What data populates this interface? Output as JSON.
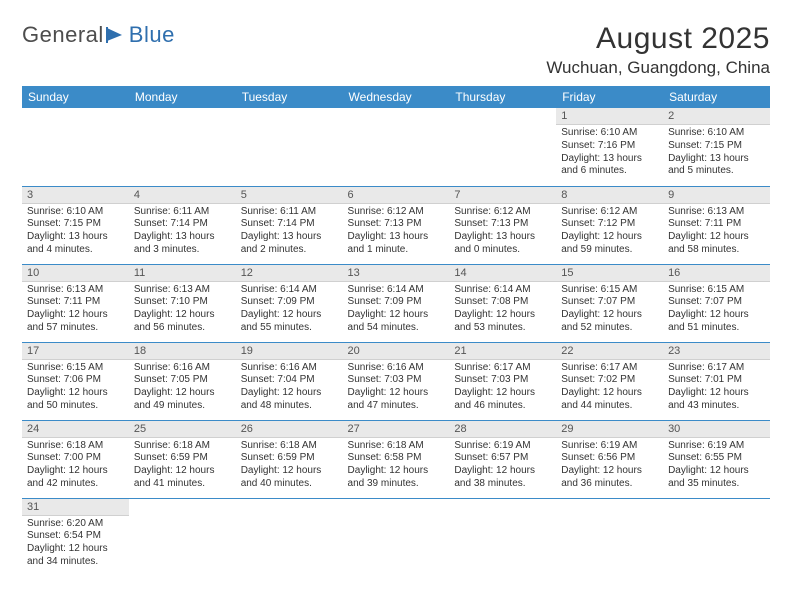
{
  "logo": {
    "text1": "General",
    "text2": "Blue"
  },
  "title": "August 2025",
  "location": "Wuchuan, Guangdong, China",
  "colors": {
    "header_bg": "#3b8bc8",
    "header_text": "#ffffff",
    "daynum_bg": "#e9e9e9",
    "row_divider": "#3b8bc8",
    "logo_gray": "#4d4d4d",
    "logo_blue": "#2f6fae"
  },
  "weekdays": [
    "Sunday",
    "Monday",
    "Tuesday",
    "Wednesday",
    "Thursday",
    "Friday",
    "Saturday"
  ],
  "grid": [
    [
      null,
      null,
      null,
      null,
      null,
      {
        "n": "1",
        "sr": "6:10 AM",
        "ss": "7:16 PM",
        "dl": "13 hours and 6 minutes."
      },
      {
        "n": "2",
        "sr": "6:10 AM",
        "ss": "7:15 PM",
        "dl": "13 hours and 5 minutes."
      }
    ],
    [
      {
        "n": "3",
        "sr": "6:10 AM",
        "ss": "7:15 PM",
        "dl": "13 hours and 4 minutes."
      },
      {
        "n": "4",
        "sr": "6:11 AM",
        "ss": "7:14 PM",
        "dl": "13 hours and 3 minutes."
      },
      {
        "n": "5",
        "sr": "6:11 AM",
        "ss": "7:14 PM",
        "dl": "13 hours and 2 minutes."
      },
      {
        "n": "6",
        "sr": "6:12 AM",
        "ss": "7:13 PM",
        "dl": "13 hours and 1 minute."
      },
      {
        "n": "7",
        "sr": "6:12 AM",
        "ss": "7:13 PM",
        "dl": "13 hours and 0 minutes."
      },
      {
        "n": "8",
        "sr": "6:12 AM",
        "ss": "7:12 PM",
        "dl": "12 hours and 59 minutes."
      },
      {
        "n": "9",
        "sr": "6:13 AM",
        "ss": "7:11 PM",
        "dl": "12 hours and 58 minutes."
      }
    ],
    [
      {
        "n": "10",
        "sr": "6:13 AM",
        "ss": "7:11 PM",
        "dl": "12 hours and 57 minutes."
      },
      {
        "n": "11",
        "sr": "6:13 AM",
        "ss": "7:10 PM",
        "dl": "12 hours and 56 minutes."
      },
      {
        "n": "12",
        "sr": "6:14 AM",
        "ss": "7:09 PM",
        "dl": "12 hours and 55 minutes."
      },
      {
        "n": "13",
        "sr": "6:14 AM",
        "ss": "7:09 PM",
        "dl": "12 hours and 54 minutes."
      },
      {
        "n": "14",
        "sr": "6:14 AM",
        "ss": "7:08 PM",
        "dl": "12 hours and 53 minutes."
      },
      {
        "n": "15",
        "sr": "6:15 AM",
        "ss": "7:07 PM",
        "dl": "12 hours and 52 minutes."
      },
      {
        "n": "16",
        "sr": "6:15 AM",
        "ss": "7:07 PM",
        "dl": "12 hours and 51 minutes."
      }
    ],
    [
      {
        "n": "17",
        "sr": "6:15 AM",
        "ss": "7:06 PM",
        "dl": "12 hours and 50 minutes."
      },
      {
        "n": "18",
        "sr": "6:16 AM",
        "ss": "7:05 PM",
        "dl": "12 hours and 49 minutes."
      },
      {
        "n": "19",
        "sr": "6:16 AM",
        "ss": "7:04 PM",
        "dl": "12 hours and 48 minutes."
      },
      {
        "n": "20",
        "sr": "6:16 AM",
        "ss": "7:03 PM",
        "dl": "12 hours and 47 minutes."
      },
      {
        "n": "21",
        "sr": "6:17 AM",
        "ss": "7:03 PM",
        "dl": "12 hours and 46 minutes."
      },
      {
        "n": "22",
        "sr": "6:17 AM",
        "ss": "7:02 PM",
        "dl": "12 hours and 44 minutes."
      },
      {
        "n": "23",
        "sr": "6:17 AM",
        "ss": "7:01 PM",
        "dl": "12 hours and 43 minutes."
      }
    ],
    [
      {
        "n": "24",
        "sr": "6:18 AM",
        "ss": "7:00 PM",
        "dl": "12 hours and 42 minutes."
      },
      {
        "n": "25",
        "sr": "6:18 AM",
        "ss": "6:59 PM",
        "dl": "12 hours and 41 minutes."
      },
      {
        "n": "26",
        "sr": "6:18 AM",
        "ss": "6:59 PM",
        "dl": "12 hours and 40 minutes."
      },
      {
        "n": "27",
        "sr": "6:18 AM",
        "ss": "6:58 PM",
        "dl": "12 hours and 39 minutes."
      },
      {
        "n": "28",
        "sr": "6:19 AM",
        "ss": "6:57 PM",
        "dl": "12 hours and 38 minutes."
      },
      {
        "n": "29",
        "sr": "6:19 AM",
        "ss": "6:56 PM",
        "dl": "12 hours and 36 minutes."
      },
      {
        "n": "30",
        "sr": "6:19 AM",
        "ss": "6:55 PM",
        "dl": "12 hours and 35 minutes."
      }
    ],
    [
      {
        "n": "31",
        "sr": "6:20 AM",
        "ss": "6:54 PM",
        "dl": "12 hours and 34 minutes."
      },
      null,
      null,
      null,
      null,
      null,
      null
    ]
  ],
  "labels": {
    "sunrise": "Sunrise: ",
    "sunset": "Sunset: ",
    "daylight": "Daylight: "
  }
}
